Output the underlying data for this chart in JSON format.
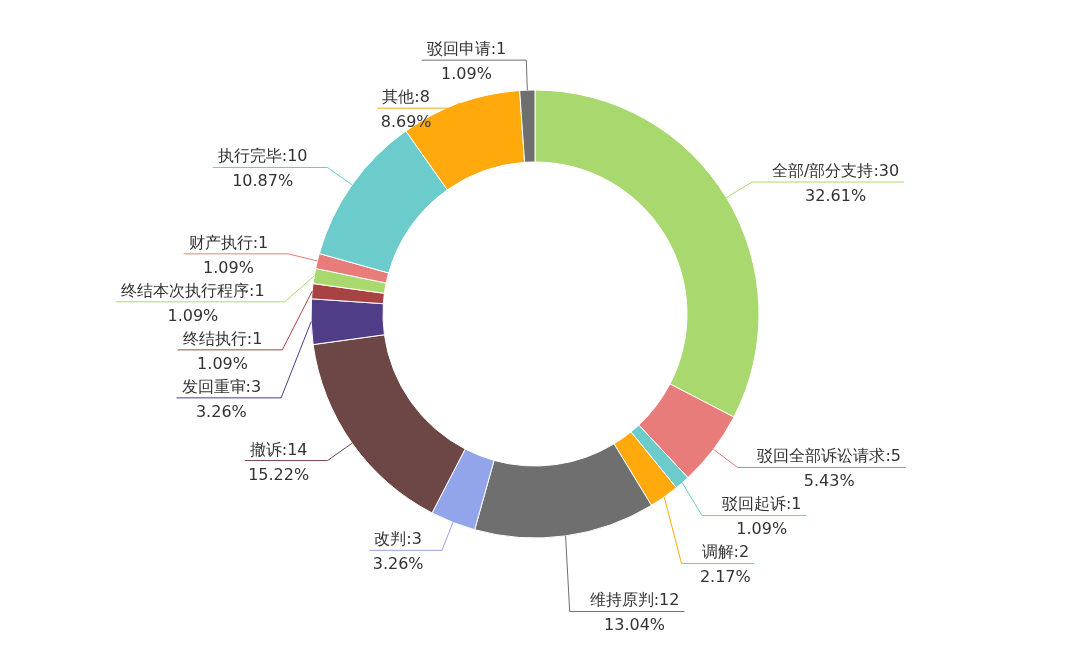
{
  "chart_data": {
    "type": "donut",
    "categories": [
      "全部/部分支持:30",
      "驳回全部诉讼请求:5",
      "驳回起诉:1",
      "调解:2",
      "维持原判:12",
      "改判:3",
      "撤诉:14",
      "发回重审:3",
      "终结执行:1",
      "终结本次执行程序:1",
      "财产执行:1",
      "执行完毕:10",
      "其他:8",
      "驳回申请:1"
    ],
    "values": [
      32.61,
      5.43,
      1.09,
      2.17,
      13.04,
      3.26,
      15.22,
      3.26,
      1.09,
      1.09,
      1.09,
      10.87,
      8.69,
      1.09
    ],
    "colors": [
      "#a9d86e",
      "#e87c7a",
      "#6ccbcb",
      "#ffa90d",
      "#6f6f6f",
      "#92a4ea",
      "#6d4646",
      "#4f3d88",
      "#a94343",
      "#a9d86e",
      "#e87c7a",
      "#6ccbcb",
      "#ffa90d",
      "#6f6f6f"
    ],
    "value_labels": [
      "32.61%",
      "5.43%",
      "1.09%",
      "2.17%",
      "13.04%",
      "3.26%",
      "15.22%",
      "3.26%",
      "1.09%",
      "1.09%",
      "1.09%",
      "10.87%",
      "8.69%",
      "1.09%"
    ]
  }
}
